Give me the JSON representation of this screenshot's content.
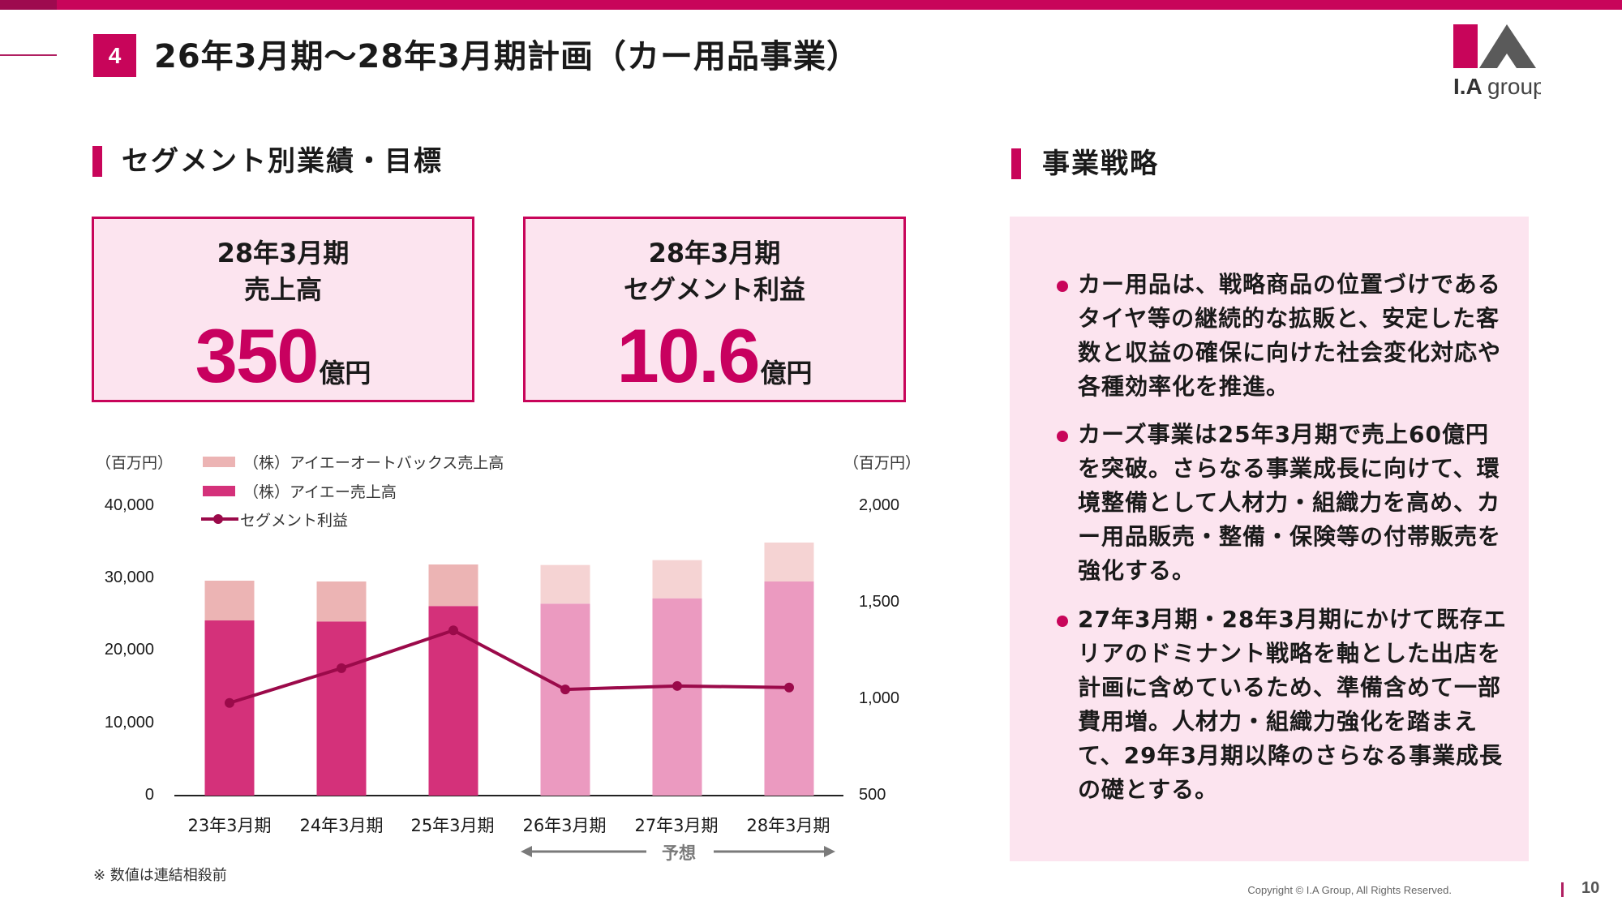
{
  "header": {
    "section_number": "4",
    "title": "26年3月期～28年3月期計画（カー用品事業）",
    "logo_text": "I.Agroup"
  },
  "left_section": {
    "title": "セグメント別業績・目標",
    "kpis": [
      {
        "line1": "28年3月期",
        "line2": "売上高",
        "value": "350",
        "unit": "億円"
      },
      {
        "line1": "28年3月期",
        "line2": "セグメント利益",
        "value": "10.6",
        "unit": "億円"
      }
    ]
  },
  "chart_data": {
    "type": "bar",
    "stacked": true,
    "categories": [
      "23年3月期",
      "24年3月期",
      "25年3月期",
      "26年3月期",
      "27年3月期",
      "28年3月期"
    ],
    "forecast_from_index": 3,
    "forecast_label": "予想",
    "left_unit": "（百万円）",
    "right_unit": "（百万円）",
    "left_ylim": [
      0,
      40000
    ],
    "left_ticks": [
      "0",
      "10,000",
      "20,000",
      "30,000",
      "40,000"
    ],
    "right_ylim": [
      500,
      2000
    ],
    "right_ticks": [
      "500",
      "1,000",
      "1,500",
      "2,000"
    ],
    "series": [
      {
        "name": "（株）アイエー売上高",
        "kind": "bar",
        "axis": "left",
        "values": [
          24200,
          24060,
          26190,
          26520,
          27260,
          29580
        ]
      },
      {
        "name": "（株）アイエーオートバックス売上高",
        "kind": "bar",
        "axis": "left",
        "values": [
          5490,
          5520,
          5740,
          5340,
          5270,
          5380
        ]
      },
      {
        "name": "セグメント利益",
        "kind": "line",
        "axis": "right",
        "values": [
          980,
          1160,
          1356,
          1050,
          1068,
          1060
        ]
      }
    ],
    "legend": [
      "（株）アイエーオートバックス売上高",
      "（株）アイエー売上高",
      "セグメント利益"
    ],
    "legend_position": "top-left",
    "colors": {
      "ia_actual": "#d4317a",
      "ia_forecast": "#eb9ac0",
      "autobacs_actual": "#ecb4b4",
      "autobacs_forecast": "#f5d3d3",
      "profit_line": "#9b0a4a"
    }
  },
  "note": "※ 数値は連結相殺前",
  "right_section": {
    "title": "事業戦略",
    "bullets": [
      "カー用品は、戦略商品の位置づけであるタイヤ等の継続的な拡販と、安定した客数と収益の確保に向けた社会変化対応や各種効率化を推進。",
      "カーズ事業は25年3月期で売上60億円を突破。さらなる事業成長に向けて、環境整備として人材力・組織力を高め、カー用品販売・整備・保険等の付帯販売を強化する。",
      "27年3月期・28年3月期にかけて既存エリアのドミナント戦略を軸とした出店を計画に含めているため、準備含めて一部費用増。人材力・組織力強化を踏まえて、29年3月期以降のさらなる事業成長の礎とする。"
    ]
  },
  "footer": {
    "copyright": "Copyright © I.A Group, All Rights Reserved.",
    "page": "10"
  },
  "theme": {
    "accent": "#c8055a",
    "panel_bg": "#fce4ef"
  }
}
